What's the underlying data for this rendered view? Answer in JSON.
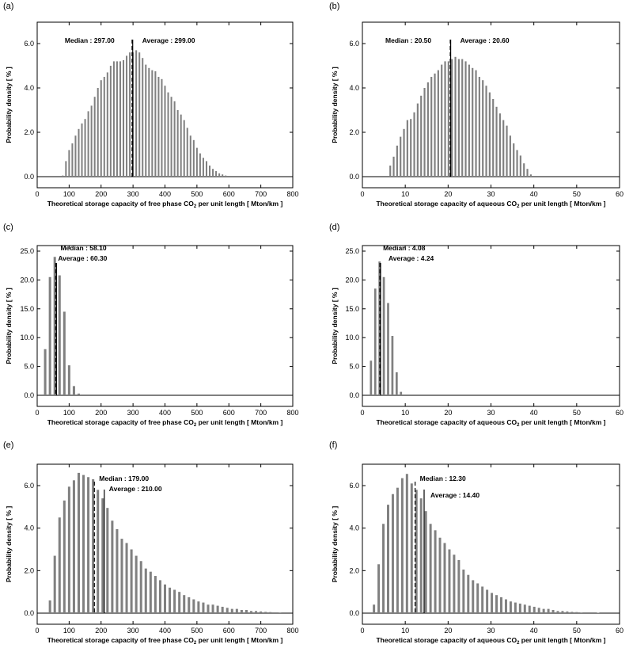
{
  "chart_data": [
    {
      "panel": "(a)",
      "type": "bar",
      "xlabel_prefix": "Theoretical storage capacity of free phase CO",
      "xlabel_sub": "2",
      "xlabel_suffix": " per unit length [ Mton/km ]",
      "ylabel": "Probability density [ % ]",
      "xlim": [
        0,
        800
      ],
      "ylim": [
        0,
        6
      ],
      "xticks": [
        "0",
        "100",
        "200",
        "300",
        "400",
        "500",
        "600",
        "700",
        "800"
      ],
      "yticks": [
        "0.0",
        "2.0",
        "4.0",
        "6.0"
      ],
      "ytick_values": [
        0,
        2,
        4,
        6
      ],
      "x": [
        80,
        90,
        100,
        110,
        120,
        130,
        140,
        150,
        160,
        170,
        180,
        190,
        200,
        210,
        220,
        230,
        240,
        250,
        260,
        270,
        280,
        290,
        300,
        310,
        320,
        330,
        340,
        350,
        360,
        370,
        380,
        390,
        400,
        410,
        420,
        430,
        440,
        450,
        460,
        470,
        480,
        490,
        500,
        510,
        520,
        530,
        540,
        550,
        560,
        570,
        580,
        590
      ],
      "values": [
        0.05,
        0.7,
        1.2,
        1.5,
        1.85,
        2.15,
        2.4,
        2.6,
        2.95,
        3.2,
        3.6,
        4.0,
        4.35,
        4.5,
        4.7,
        5.0,
        5.2,
        5.2,
        5.2,
        5.25,
        5.45,
        5.6,
        5.6,
        5.7,
        5.6,
        5.35,
        5.05,
        4.9,
        4.8,
        4.75,
        4.5,
        4.4,
        4.1,
        3.8,
        3.6,
        3.4,
        3.0,
        2.8,
        2.55,
        2.2,
        1.85,
        1.65,
        1.3,
        1.05,
        0.85,
        0.7,
        0.5,
        0.35,
        0.25,
        0.15,
        0.1,
        0.05
      ],
      "median_label": "Median : 297.00",
      "median_value": 297,
      "average_label": "Average : 299.00",
      "average_value": 299
    },
    {
      "panel": "(b)",
      "type": "bar",
      "xlabel_prefix": "Theoretical storage capacity of aqueous CO",
      "xlabel_sub": "2",
      "xlabel_suffix": " per unit length [ Mton/km ]",
      "ylabel": "Probability density [ % ]",
      "xlim": [
        0,
        60
      ],
      "ylim": [
        0,
        6
      ],
      "xticks": [
        "0",
        "10",
        "20",
        "30",
        "40",
        "50",
        "60"
      ],
      "yticks": [
        "0.0",
        "2.0",
        "4.0",
        "6.0"
      ],
      "ytick_values": [
        0,
        2,
        4,
        6
      ],
      "x": [
        6.5,
        7.3,
        8.1,
        8.9,
        9.7,
        10.5,
        11.3,
        12.1,
        12.9,
        13.7,
        14.5,
        15.3,
        16.1,
        16.9,
        17.7,
        18.5,
        19.3,
        20.1,
        20.9,
        21.7,
        22.5,
        23.3,
        24.1,
        24.9,
        25.7,
        26.5,
        27.3,
        28.1,
        28.9,
        29.7,
        30.5,
        31.3,
        32.1,
        32.9,
        33.7,
        34.5,
        35.3,
        36.1,
        36.9,
        37.7,
        38.5,
        39.3
      ],
      "values": [
        0.5,
        0.9,
        1.4,
        1.8,
        2.15,
        2.55,
        2.6,
        2.9,
        3.3,
        3.65,
        4.0,
        4.25,
        4.5,
        4.65,
        4.8,
        5.05,
        5.2,
        5.2,
        5.3,
        5.4,
        5.3,
        5.3,
        5.2,
        5.05,
        4.9,
        4.8,
        4.5,
        4.35,
        4.1,
        3.8,
        3.5,
        3.15,
        2.85,
        2.55,
        2.3,
        1.85,
        1.5,
        1.2,
        0.95,
        0.6,
        0.35,
        0.1
      ],
      "median_label": "Median : 20.50",
      "median_value": 20.5,
      "average_label": "Average : 20.60",
      "average_value": 20.6
    },
    {
      "panel": "(c)",
      "type": "bar",
      "xlabel_prefix": "Theoretical storage capacity of free phase CO",
      "xlabel_sub": "2",
      "xlabel_suffix": " per unit length [ Mton/km ]",
      "ylabel": "Probability density [ % ]",
      "xlim": [
        0,
        800
      ],
      "ylim": [
        0,
        25
      ],
      "xticks": [
        "0",
        "100",
        "200",
        "300",
        "400",
        "500",
        "600",
        "700",
        "800"
      ],
      "yticks": [
        "0.0",
        "5.0",
        "10.0",
        "15.0",
        "20.0",
        "25.0"
      ],
      "ytick_values": [
        0,
        5,
        10,
        15,
        20,
        25
      ],
      "x": [
        25,
        40,
        55,
        70,
        85,
        100,
        115,
        130
      ],
      "values": [
        8.0,
        20.5,
        24.0,
        20.8,
        14.5,
        5.2,
        1.6,
        0.3
      ],
      "median_label": "Median : 58.10",
      "median_value": 58.1,
      "average_label": "Average : 60.30",
      "average_value": 60.3
    },
    {
      "panel": "(d)",
      "type": "bar",
      "xlabel_prefix": "Theoretical storage capacity of aqueous CO",
      "xlabel_sub": "2",
      "xlabel_suffix": " per unit length [ Mton/km ]",
      "ylabel": "Probability density [ % ]",
      "xlim": [
        0,
        60
      ],
      "ylim": [
        0,
        25
      ],
      "xticks": [
        "0",
        "10",
        "20",
        "30",
        "40",
        "50",
        "60"
      ],
      "yticks": [
        "0.0",
        "5.0",
        "10.0",
        "15.0",
        "20.0",
        "25.0"
      ],
      "ytick_values": [
        0,
        5,
        10,
        15,
        20,
        25
      ],
      "x": [
        2.0,
        3.0,
        4.0,
        5.0,
        6.0,
        7.0,
        8.0,
        9.0
      ],
      "values": [
        6.0,
        18.5,
        23.2,
        20.5,
        16.0,
        10.3,
        4.0,
        0.6
      ],
      "median_label": "Median : 4.08",
      "median_value": 4.08,
      "average_label": "Average : 4.24",
      "average_value": 4.24
    },
    {
      "panel": "(e)",
      "type": "bar",
      "xlabel_prefix": "Theoretical storage capacity of free phase CO",
      "xlabel_sub": "2",
      "xlabel_suffix": " per unit length [ Mton/km ]",
      "ylabel": "Probability density [ % ]",
      "xlim": [
        0,
        800
      ],
      "ylim": [
        0,
        6
      ],
      "xticks": [
        "0",
        "100",
        "200",
        "300",
        "400",
        "500",
        "600",
        "700",
        "800"
      ],
      "yticks": [
        "0.0",
        "2.0",
        "4.0",
        "6.0"
      ],
      "ytick_values": [
        0,
        2,
        4,
        6
      ],
      "x": [
        40,
        55,
        70,
        85,
        100,
        115,
        130,
        145,
        160,
        175,
        190,
        205,
        220,
        235,
        250,
        265,
        280,
        295,
        310,
        325,
        340,
        355,
        370,
        385,
        400,
        415,
        430,
        445,
        460,
        475,
        490,
        505,
        520,
        535,
        550,
        565,
        580,
        595,
        610,
        625,
        640,
        655,
        670,
        685,
        700,
        715,
        730,
        760
      ],
      "values": [
        0.6,
        2.7,
        4.5,
        5.3,
        5.95,
        6.25,
        6.6,
        6.5,
        6.4,
        6.3,
        5.8,
        5.4,
        4.95,
        4.35,
        3.95,
        3.5,
        3.3,
        3.0,
        2.7,
        2.45,
        2.1,
        1.95,
        1.75,
        1.55,
        1.35,
        1.2,
        1.1,
        1.0,
        0.85,
        0.75,
        0.65,
        0.55,
        0.5,
        0.4,
        0.4,
        0.35,
        0.3,
        0.25,
        0.2,
        0.2,
        0.15,
        0.15,
        0.1,
        0.1,
        0.08,
        0.06,
        0.05,
        0.03
      ],
      "median_label": "Median : 179.00",
      "median_value": 179,
      "average_label": "Average : 210.00",
      "average_value": 210
    },
    {
      "panel": "(f)",
      "type": "bar",
      "xlabel_prefix": "Theoretical storage capacity of aqueous CO",
      "xlabel_sub": "2",
      "xlabel_suffix": " per unit length [ Mton/km ]",
      "ylabel": "Probability density [ % ]",
      "xlim": [
        0,
        60
      ],
      "ylim": [
        0,
        6
      ],
      "xticks": [
        "0",
        "10",
        "20",
        "30",
        "40",
        "50",
        "60"
      ],
      "yticks": [
        "0.0",
        "2.0",
        "4.0",
        "6.0"
      ],
      "ytick_values": [
        0,
        2,
        4,
        6
      ],
      "x": [
        2.7,
        3.8,
        4.9,
        6.0,
        7.1,
        8.2,
        9.3,
        10.4,
        11.5,
        12.6,
        13.7,
        14.8,
        15.9,
        17.0,
        18.1,
        19.2,
        20.3,
        21.4,
        22.5,
        23.6,
        24.7,
        25.8,
        26.9,
        28.0,
        29.1,
        30.2,
        31.3,
        32.4,
        33.5,
        34.6,
        35.7,
        36.8,
        37.9,
        39.0,
        40.1,
        41.2,
        42.3,
        43.4,
        44.5,
        45.6,
        46.7,
        47.8,
        48.9,
        50.0,
        51.1,
        55.0
      ],
      "values": [
        0.4,
        2.3,
        4.2,
        5.1,
        5.6,
        5.9,
        6.35,
        6.55,
        6.1,
        5.8,
        5.4,
        4.8,
        4.2,
        3.9,
        3.55,
        3.3,
        3.0,
        2.75,
        2.5,
        2.05,
        1.8,
        1.55,
        1.4,
        1.25,
        1.1,
        0.95,
        0.85,
        0.75,
        0.65,
        0.55,
        0.5,
        0.45,
        0.4,
        0.35,
        0.3,
        0.25,
        0.2,
        0.2,
        0.15,
        0.1,
        0.1,
        0.08,
        0.06,
        0.05,
        0.03,
        0.02
      ],
      "median_label": "Median : 12.30",
      "median_value": 12.3,
      "average_label": "Average : 14.40",
      "average_value": 14.4
    }
  ],
  "colors": {
    "bar": "#808080",
    "axis": "#000000",
    "marker": "#000000"
  }
}
